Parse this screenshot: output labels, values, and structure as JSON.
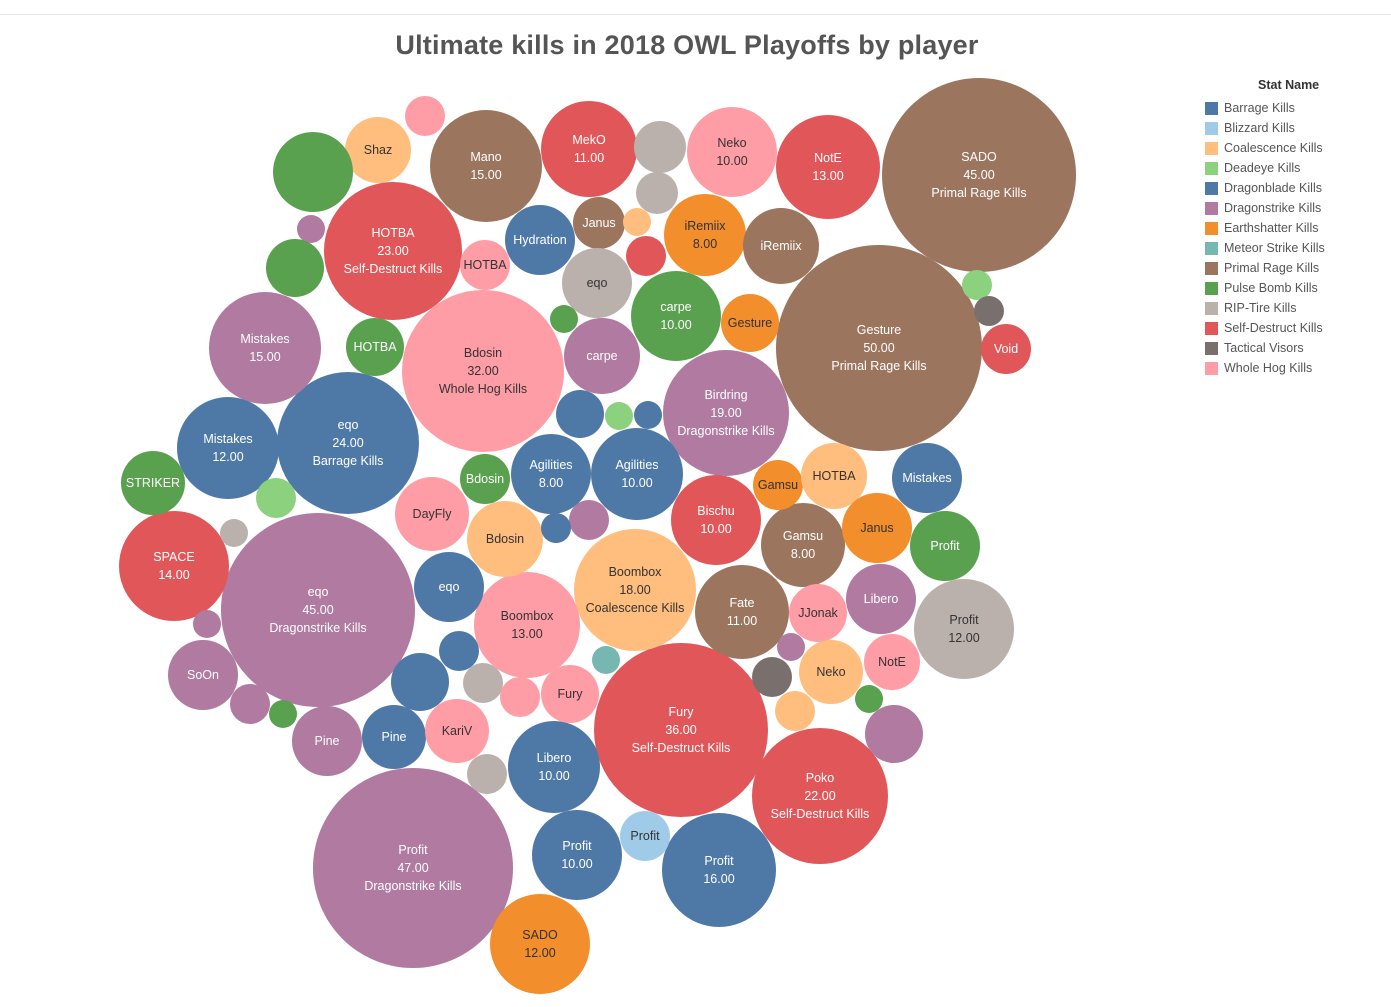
{
  "chart_data": {
    "type": "packed-bubble",
    "title": "Ultimate kills in 2018 OWL Playoffs by player",
    "legend_title": "Stat Name",
    "legend_position": "top-right",
    "categories": [
      {
        "name": "Barrage Kills",
        "color": "#4e79a7"
      },
      {
        "name": "Blizzard Kills",
        "color": "#a0cbe8"
      },
      {
        "name": "Coalescence Kills",
        "color": "#ffbe7d"
      },
      {
        "name": "Deadeye Kills",
        "color": "#8cd17d"
      },
      {
        "name": "Dragonblade Kills",
        "color": "#4e79a7"
      },
      {
        "name": "Dragonstrike Kills",
        "color": "#b07aa1"
      },
      {
        "name": "Earthshatter Kills",
        "color": "#f28e2b"
      },
      {
        "name": "Meteor Strike Kills",
        "color": "#76b7b2"
      },
      {
        "name": "Primal Rage Kills",
        "color": "#9c755f"
      },
      {
        "name": "Pulse Bomb Kills",
        "color": "#59a14f"
      },
      {
        "name": "RIP-Tire Kills",
        "color": "#bab0ac"
      },
      {
        "name": "Self-Destruct Kills",
        "color": "#e15759"
      },
      {
        "name": "Tactical Visors",
        "color": "#79706e"
      },
      {
        "name": "Whole Hog Kills",
        "color": "#ff9da7"
      }
    ],
    "bubbles": [
      {
        "player": "SADO",
        "value": 45,
        "stat": "Primal Rage Kills"
      },
      {
        "player": "Gesture",
        "value": 50,
        "stat": "Primal Rage Kills"
      },
      {
        "player": "Profit",
        "value": 47,
        "stat": "Dragonstrike Kills"
      },
      {
        "player": "eqo",
        "value": 45,
        "stat": "Dragonstrike Kills"
      },
      {
        "player": "Fury",
        "value": 36,
        "stat": "Self-Destruct Kills"
      },
      {
        "player": "Bdosin",
        "value": 32,
        "stat": "Whole Hog Kills"
      },
      {
        "player": "eqo",
        "value": 24,
        "stat": "Barrage Kills"
      },
      {
        "player": "HOTBA",
        "value": 23,
        "stat": "Self-Destruct Kills"
      },
      {
        "player": "Poko",
        "value": 22,
        "stat": "Self-Destruct Kills"
      },
      {
        "player": "Birdring",
        "value": 19,
        "stat": "Dragonstrike Kills"
      },
      {
        "player": "Boombox",
        "value": 18,
        "stat": "Coalescence Kills"
      },
      {
        "player": "Profit",
        "value": 16,
        "stat": "Barrage Kills"
      },
      {
        "player": "Mano",
        "value": 15,
        "stat": "Primal Rage Kills"
      },
      {
        "player": "Mistakes",
        "value": 15,
        "stat": "Dragonstrike Kills"
      },
      {
        "player": "SPACE",
        "value": 14,
        "stat": "Self-Destruct Kills"
      },
      {
        "player": "NotE",
        "value": 13,
        "stat": "Self-Destruct Kills"
      },
      {
        "player": "Boombox",
        "value": 13,
        "stat": "Whole Hog Kills"
      },
      {
        "player": "Mistakes",
        "value": 12,
        "stat": "Barrage Kills"
      },
      {
        "player": "Profit",
        "value": 12,
        "stat": "RIP-Tire Kills"
      },
      {
        "player": "SADO",
        "value": 12,
        "stat": "Earthshatter Kills"
      },
      {
        "player": "MekO",
        "value": 11,
        "stat": "Self-Destruct Kills"
      },
      {
        "player": "Fate",
        "value": 11,
        "stat": "Primal Rage Kills"
      },
      {
        "player": "Neko",
        "value": 10,
        "stat": "Whole Hog Kills"
      },
      {
        "player": "carpe",
        "value": 10,
        "stat": "Pulse Bomb Kills"
      },
      {
        "player": "Agilities",
        "value": 10,
        "stat": "Barrage Kills"
      },
      {
        "player": "Bischu",
        "value": 10,
        "stat": "Self-Destruct Kills"
      },
      {
        "player": "Libero",
        "value": 10,
        "stat": "Barrage Kills"
      },
      {
        "player": "Profit",
        "value": 10,
        "stat": "Barrage Kills"
      },
      {
        "player": "iRemiix",
        "value": 8,
        "stat": "Earthshatter Kills"
      },
      {
        "player": "Agilities",
        "value": 8,
        "stat": "Barrage Kills"
      },
      {
        "player": "Gamsu",
        "value": 8,
        "stat": "Primal Rage Kills"
      },
      {
        "player": "Shaz",
        "stat": "Coalescence Kills"
      },
      {
        "player": "Hydration",
        "stat": "Dragonblade Kills"
      },
      {
        "player": "Janus",
        "stat": "Primal Rage Kills"
      },
      {
        "player": "HOTBA",
        "stat": "Whole Hog Kills"
      },
      {
        "player": "eqo",
        "stat": "RIP-Tire Kills"
      },
      {
        "player": "iRemiix",
        "stat": "Primal Rage Kills"
      },
      {
        "player": "HOTBA",
        "stat": "Pulse Bomb Kills"
      },
      {
        "player": "carpe",
        "stat": "Dragonstrike Kills"
      },
      {
        "player": "Gesture",
        "stat": "Earthshatter Kills"
      },
      {
        "player": "Void",
        "stat": "Self-Destruct Kills"
      },
      {
        "player": "STRIKER",
        "stat": "Pulse Bomb Kills"
      },
      {
        "player": "Bdosin",
        "stat": "Pulse Bomb Kills"
      },
      {
        "player": "DayFly",
        "stat": "Whole Hog Kills"
      },
      {
        "player": "Bdosin",
        "stat": "Coalescence Kills"
      },
      {
        "player": "Gamsu",
        "stat": "Earthshatter Kills"
      },
      {
        "player": "HOTBA",
        "stat": "Coalescence Kills"
      },
      {
        "player": "Mistakes",
        "stat": "Dragonblade Kills"
      },
      {
        "player": "Janus",
        "stat": "Earthshatter Kills"
      },
      {
        "player": "Profit",
        "stat": "Pulse Bomb Kills"
      },
      {
        "player": "eqo",
        "stat": "Dragonblade Kills"
      },
      {
        "player": "JJonak",
        "stat": "Whole Hog Kills"
      },
      {
        "player": "Libero",
        "stat": "Dragonstrike Kills"
      },
      {
        "player": "SoOn",
        "stat": "Dragonstrike Kills"
      },
      {
        "player": "Neko",
        "stat": "Coalescence Kills"
      },
      {
        "player": "NotE",
        "stat": "Whole Hog Kills"
      },
      {
        "player": "Fury",
        "stat": "Whole Hog Kills"
      },
      {
        "player": "Pine",
        "stat": "Dragonstrike Kills"
      },
      {
        "player": "Pine",
        "stat": "Barrage Kills"
      },
      {
        "player": "KariV",
        "stat": "Whole Hog Kills"
      },
      {
        "player": "Profit",
        "stat": "Blizzard Kills"
      },
      {
        "player": "",
        "stat": "Whole Hog Kills"
      },
      {
        "player": "",
        "stat": "Pulse Bomb Kills"
      },
      {
        "player": "",
        "stat": "RIP-Tire Kills"
      },
      {
        "player": "",
        "stat": "RIP-Tire Kills"
      },
      {
        "player": "",
        "stat": "Coalescence Kills"
      },
      {
        "player": "",
        "stat": "Self-Destruct Kills"
      },
      {
        "player": "",
        "stat": "Dragonstrike Kills"
      },
      {
        "player": "",
        "stat": "Pulse Bomb Kills"
      },
      {
        "player": "",
        "stat": "Pulse Bomb Kills"
      },
      {
        "player": "",
        "stat": "Deadeye Kills"
      },
      {
        "player": "",
        "stat": "Tactical Visors"
      },
      {
        "player": "",
        "stat": "Barrage Kills"
      },
      {
        "player": "",
        "stat": "Deadeye Kills"
      },
      {
        "player": "",
        "stat": "Barrage Kills"
      },
      {
        "player": "",
        "stat": "Deadeye Kills"
      },
      {
        "player": "",
        "stat": "Dragonstrike Kills"
      },
      {
        "player": "",
        "stat": "Barrage Kills"
      },
      {
        "player": "",
        "stat": "RIP-Tire Kills"
      },
      {
        "player": "",
        "stat": "Dragonstrike Kills"
      },
      {
        "player": "",
        "stat": "Dragonstrike Kills"
      },
      {
        "player": "",
        "stat": "Pulse Bomb Kills"
      },
      {
        "player": "",
        "stat": "Barrage Kills"
      },
      {
        "player": "",
        "stat": "Barrage Kills"
      },
      {
        "player": "",
        "stat": "RIP-Tire Kills"
      },
      {
        "player": "",
        "stat": "Whole Hog Kills"
      },
      {
        "player": "",
        "stat": "Meteor Strike Kills"
      },
      {
        "player": "",
        "stat": "Dragonstrike Kills"
      },
      {
        "player": "",
        "stat": "Tactical Visors"
      },
      {
        "player": "",
        "stat": "Coalescence Kills"
      },
      {
        "player": "",
        "stat": "Pulse Bomb Kills"
      },
      {
        "player": "",
        "stat": "Dragonstrike Kills"
      },
      {
        "player": "",
        "stat": "RIP-Tire Kills"
      },
      {
        "player": "",
        "stat": "Barrage Kills"
      },
      {
        "player": "",
        "stat": "Barrage Kills"
      },
      {
        "player": "",
        "stat": "Dragonstrike Kills"
      }
    ]
  }
}
